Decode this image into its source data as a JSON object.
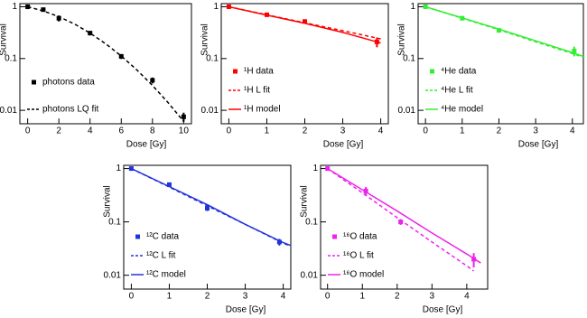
{
  "chart_data": [
    {
      "type": "line",
      "xlabel": "Dose [Gy]",
      "ylabel": "Survival",
      "log_y": true,
      "legend": "lower left",
      "xlim": [
        -0.5,
        10.5
      ],
      "xticks": [
        0,
        2,
        4,
        6,
        8,
        10
      ],
      "ylim": [
        0.0055,
        1.15
      ],
      "yticks": [
        1,
        0.1,
        0.01
      ],
      "series": [
        {
          "name": "photons data",
          "color": "#000000",
          "style": "markers",
          "x": [
            0,
            1,
            2,
            4,
            6,
            8,
            10
          ],
          "values": [
            1,
            0.88,
            0.6,
            0.31,
            0.11,
            0.038,
            0.0075
          ],
          "errors": [
            0.1,
            0.05,
            0.08,
            0.03,
            0.012,
            0.005,
            0.0015
          ]
        },
        {
          "name": "photons LQ fit",
          "color": "#000000",
          "style": "dashed",
          "x": [
            0,
            1,
            2,
            3,
            4,
            5,
            6,
            7,
            8,
            9,
            10
          ],
          "values": [
            1,
            0.832,
            0.644,
            0.464,
            0.31,
            0.193,
            0.112,
            0.0603,
            0.0302,
            0.0141,
            0.0061
          ]
        }
      ]
    },
    {
      "type": "line",
      "xlabel": "Dose [Gy]",
      "ylabel": "Survival",
      "log_y": true,
      "legend": "lower left",
      "xlim": [
        -0.2,
        4.2
      ],
      "xticks": [
        0,
        1,
        2,
        3,
        4
      ],
      "ylim": [
        0.0055,
        1.15
      ],
      "yticks": [
        1,
        0.1,
        0.01
      ],
      "series": [
        {
          "name": "¹H data",
          "color": "#ff0000",
          "style": "markers",
          "x": [
            0,
            1,
            2,
            3.9
          ],
          "values": [
            1,
            0.7,
            0.52,
            0.21
          ],
          "errors": [
            0.03,
            0.04,
            0.03,
            0.045
          ]
        },
        {
          "name": "¹H L fit",
          "color": "#ff0000",
          "style": "dashed",
          "x": [
            0,
            1,
            2,
            3,
            4
          ],
          "values": [
            1,
            0.7,
            0.49,
            0.345,
            0.24
          ]
        },
        {
          "name": "¹H model",
          "color": "#ff0000",
          "style": "solid",
          "x": [
            0,
            1,
            2,
            3,
            4
          ],
          "values": [
            1,
            0.69,
            0.48,
            0.32,
            0.2
          ]
        }
      ]
    },
    {
      "type": "line",
      "xlabel": "Dose [Gy]",
      "ylabel": "Survival",
      "log_y": true,
      "legend": "lower left",
      "xlim": [
        -0.2,
        4.3
      ],
      "xticks": [
        0,
        1,
        2,
        3,
        4
      ],
      "ylim": [
        0.0055,
        1.15
      ],
      "yticks": [
        1,
        0.1,
        0.01
      ],
      "series": [
        {
          "name": "⁴He data",
          "color": "#33ee33",
          "style": "markers",
          "x": [
            0,
            1,
            2,
            4.05
          ],
          "values": [
            1,
            0.6,
            0.35,
            0.14
          ],
          "errors": [
            0.03,
            0.03,
            0.02,
            0.03
          ]
        },
        {
          "name": "⁴He L fit",
          "color": "#33ee33",
          "style": "dashed",
          "x": [
            0,
            1,
            2,
            3,
            4,
            4.3
          ],
          "values": [
            1,
            0.6,
            0.36,
            0.21,
            0.125,
            0.105
          ]
        },
        {
          "name": "⁴He model",
          "color": "#33ee33",
          "style": "solid",
          "x": [
            0,
            1,
            2,
            3,
            4,
            4.3
          ],
          "values": [
            1,
            0.61,
            0.37,
            0.22,
            0.13,
            0.11
          ]
        }
      ]
    },
    {
      "type": "line",
      "xlabel": "Dose [Gy]",
      "ylabel": "Survival",
      "log_y": true,
      "legend": "lower left",
      "xlim": [
        -0.2,
        4.2
      ],
      "xticks": [
        0,
        1,
        2,
        3,
        4
      ],
      "ylim": [
        0.0055,
        1.15
      ],
      "yticks": [
        1,
        0.1,
        0.01
      ],
      "series": [
        {
          "name": "¹²C data",
          "color": "#2233dd",
          "style": "markers",
          "x": [
            0,
            1,
            2,
            3.9
          ],
          "values": [
            1,
            0.5,
            0.18,
            0.042
          ],
          "errors": [
            0.03,
            0.04,
            0.02,
            0.006
          ]
        },
        {
          "name": "¹²C L fit",
          "color": "#2233dd",
          "style": "dashed",
          "x": [
            0,
            1,
            2,
            3,
            4,
            4.2
          ],
          "values": [
            1,
            0.45,
            0.2,
            0.09,
            0.04,
            0.035
          ]
        },
        {
          "name": "¹²C model",
          "color": "#2233dd",
          "style": "solid",
          "x": [
            0,
            1,
            2,
            3,
            4,
            4.2
          ],
          "values": [
            1,
            0.46,
            0.21,
            0.09,
            0.041,
            0.036
          ]
        }
      ]
    },
    {
      "type": "line",
      "xlabel": "Dose [Gy]",
      "ylabel": "Survival",
      "log_y": true,
      "legend": "lower left",
      "xlim": [
        -0.2,
        4.6
      ],
      "xticks": [
        0,
        1,
        2,
        3,
        4
      ],
      "ylim": [
        0.0055,
        1.15
      ],
      "yticks": [
        1,
        0.1,
        0.01
      ],
      "series": [
        {
          "name": "¹⁶O data",
          "color": "#ee22ee",
          "style": "markers",
          "x": [
            0,
            1.1,
            2.1,
            4.2
          ],
          "values": [
            1,
            0.38,
            0.1,
            0.02
          ],
          "errors": [
            0.03,
            0.07,
            0.012,
            0.006
          ]
        },
        {
          "name": "¹⁶O L fit",
          "color": "#ee22ee",
          "style": "dashed",
          "x": [
            0,
            1,
            2,
            3,
            4,
            4.2
          ],
          "values": [
            1,
            0.35,
            0.12,
            0.042,
            0.015,
            0.012
          ]
        },
        {
          "name": "¹⁶O model",
          "color": "#ee22ee",
          "style": "solid",
          "x": [
            0,
            1,
            2,
            3,
            4,
            4.4
          ],
          "values": [
            1,
            0.4,
            0.16,
            0.062,
            0.025,
            0.017
          ]
        }
      ]
    }
  ]
}
